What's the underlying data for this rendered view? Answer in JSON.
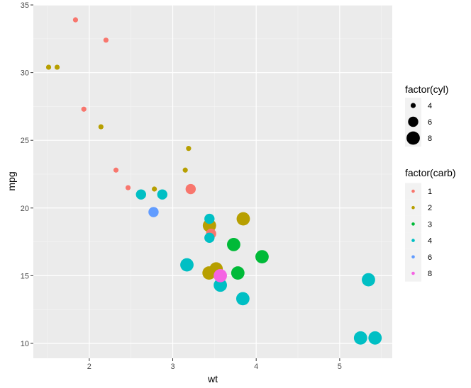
{
  "chart_data": {
    "type": "scatter",
    "title": "",
    "xlabel": "wt",
    "ylabel": "mpg",
    "xlim": [
      1.33,
      5.63
    ],
    "ylim": [
      8.9,
      35.0
    ],
    "x_ticks": [
      2,
      3,
      4,
      5
    ],
    "y_ticks": [
      10,
      15,
      20,
      25,
      30,
      35
    ],
    "grid": true,
    "legends": [
      {
        "title": "factor(cyl)",
        "aesthetic": "size",
        "placement": "right",
        "entries": [
          {
            "label": "4",
            "size": 4
          },
          {
            "label": "6",
            "size": 6
          },
          {
            "label": "8",
            "size": 8
          }
        ]
      },
      {
        "title": "factor(carb)",
        "aesthetic": "color",
        "placement": "right",
        "entries": [
          {
            "label": "1",
            "color": "#F8766D"
          },
          {
            "label": "2",
            "color": "#B79F00"
          },
          {
            "label": "3",
            "color": "#00BA38"
          },
          {
            "label": "4",
            "color": "#00BFC4"
          },
          {
            "label": "6",
            "color": "#619CFF"
          },
          {
            "label": "8",
            "color": "#F564E3"
          }
        ]
      }
    ],
    "points": [
      {
        "wt": 2.62,
        "mpg": 21.0,
        "cyl": "6",
        "carb": "4"
      },
      {
        "wt": 2.875,
        "mpg": 21.0,
        "cyl": "6",
        "carb": "4"
      },
      {
        "wt": 2.32,
        "mpg": 22.8,
        "cyl": "4",
        "carb": "1"
      },
      {
        "wt": 3.215,
        "mpg": 21.4,
        "cyl": "6",
        "carb": "1"
      },
      {
        "wt": 3.44,
        "mpg": 18.7,
        "cyl": "8",
        "carb": "2"
      },
      {
        "wt": 3.46,
        "mpg": 18.1,
        "cyl": "6",
        "carb": "1"
      },
      {
        "wt": 3.57,
        "mpg": 14.3,
        "cyl": "8",
        "carb": "4"
      },
      {
        "wt": 3.19,
        "mpg": 24.4,
        "cyl": "4",
        "carb": "2"
      },
      {
        "wt": 3.15,
        "mpg": 22.8,
        "cyl": "4",
        "carb": "2"
      },
      {
        "wt": 3.44,
        "mpg": 19.2,
        "cyl": "6",
        "carb": "4"
      },
      {
        "wt": 3.44,
        "mpg": 17.8,
        "cyl": "6",
        "carb": "4"
      },
      {
        "wt": 4.07,
        "mpg": 16.4,
        "cyl": "8",
        "carb": "3"
      },
      {
        "wt": 3.73,
        "mpg": 17.3,
        "cyl": "8",
        "carb": "3"
      },
      {
        "wt": 3.78,
        "mpg": 15.2,
        "cyl": "8",
        "carb": "3"
      },
      {
        "wt": 5.25,
        "mpg": 10.4,
        "cyl": "8",
        "carb": "4"
      },
      {
        "wt": 5.424,
        "mpg": 10.4,
        "cyl": "8",
        "carb": "4"
      },
      {
        "wt": 5.345,
        "mpg": 14.7,
        "cyl": "8",
        "carb": "4"
      },
      {
        "wt": 2.2,
        "mpg": 32.4,
        "cyl": "4",
        "carb": "1"
      },
      {
        "wt": 1.615,
        "mpg": 30.4,
        "cyl": "4",
        "carb": "2"
      },
      {
        "wt": 1.835,
        "mpg": 33.9,
        "cyl": "4",
        "carb": "1"
      },
      {
        "wt": 2.465,
        "mpg": 21.5,
        "cyl": "4",
        "carb": "1"
      },
      {
        "wt": 3.52,
        "mpg": 15.5,
        "cyl": "8",
        "carb": "2"
      },
      {
        "wt": 3.435,
        "mpg": 15.2,
        "cyl": "8",
        "carb": "2"
      },
      {
        "wt": 3.84,
        "mpg": 13.3,
        "cyl": "8",
        "carb": "4"
      },
      {
        "wt": 3.845,
        "mpg": 19.2,
        "cyl": "8",
        "carb": "2"
      },
      {
        "wt": 1.935,
        "mpg": 27.3,
        "cyl": "4",
        "carb": "1"
      },
      {
        "wt": 2.14,
        "mpg": 26.0,
        "cyl": "4",
        "carb": "2"
      },
      {
        "wt": 1.513,
        "mpg": 30.4,
        "cyl": "4",
        "carb": "2"
      },
      {
        "wt": 3.17,
        "mpg": 15.8,
        "cyl": "8",
        "carb": "4"
      },
      {
        "wt": 2.77,
        "mpg": 19.7,
        "cyl": "6",
        "carb": "6"
      },
      {
        "wt": 3.57,
        "mpg": 15.0,
        "cyl": "8",
        "carb": "8"
      },
      {
        "wt": 2.78,
        "mpg": 21.4,
        "cyl": "4",
        "carb": "2"
      }
    ]
  }
}
